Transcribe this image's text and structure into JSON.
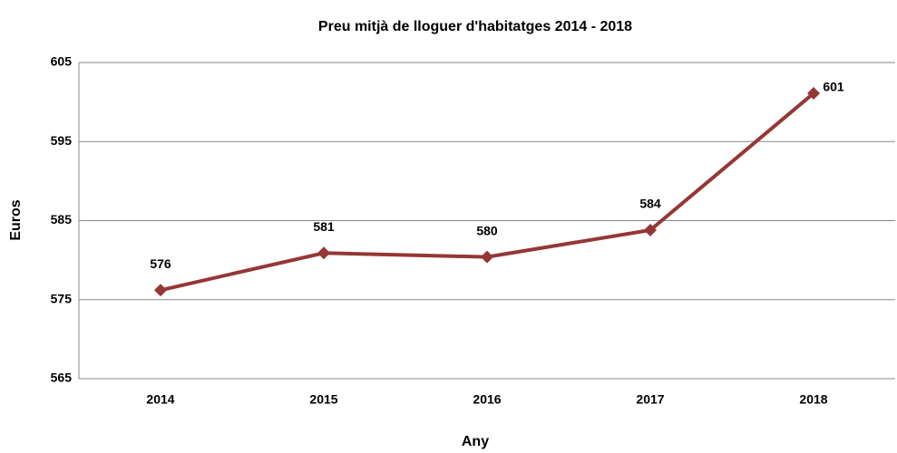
{
  "chart_data": {
    "type": "line",
    "title": "Preu mitjà de lloguer d'habitatges 2014  - 2018",
    "x_label": "Any",
    "y_label": "Euros",
    "categories": [
      "2014",
      "2015",
      "2016",
      "2017",
      "2018"
    ],
    "series": [
      {
        "name": "Euros",
        "color": "#953735",
        "values": [
          576.2,
          580.9,
          580.4,
          583.8,
          601.1
        ],
        "value_labels": [
          "576",
          "581",
          "580",
          "584",
          "601"
        ]
      }
    ],
    "ylim": [
      565,
      605
    ],
    "yticks": [
      565,
      575,
      585,
      595,
      605
    ],
    "grid": true
  }
}
